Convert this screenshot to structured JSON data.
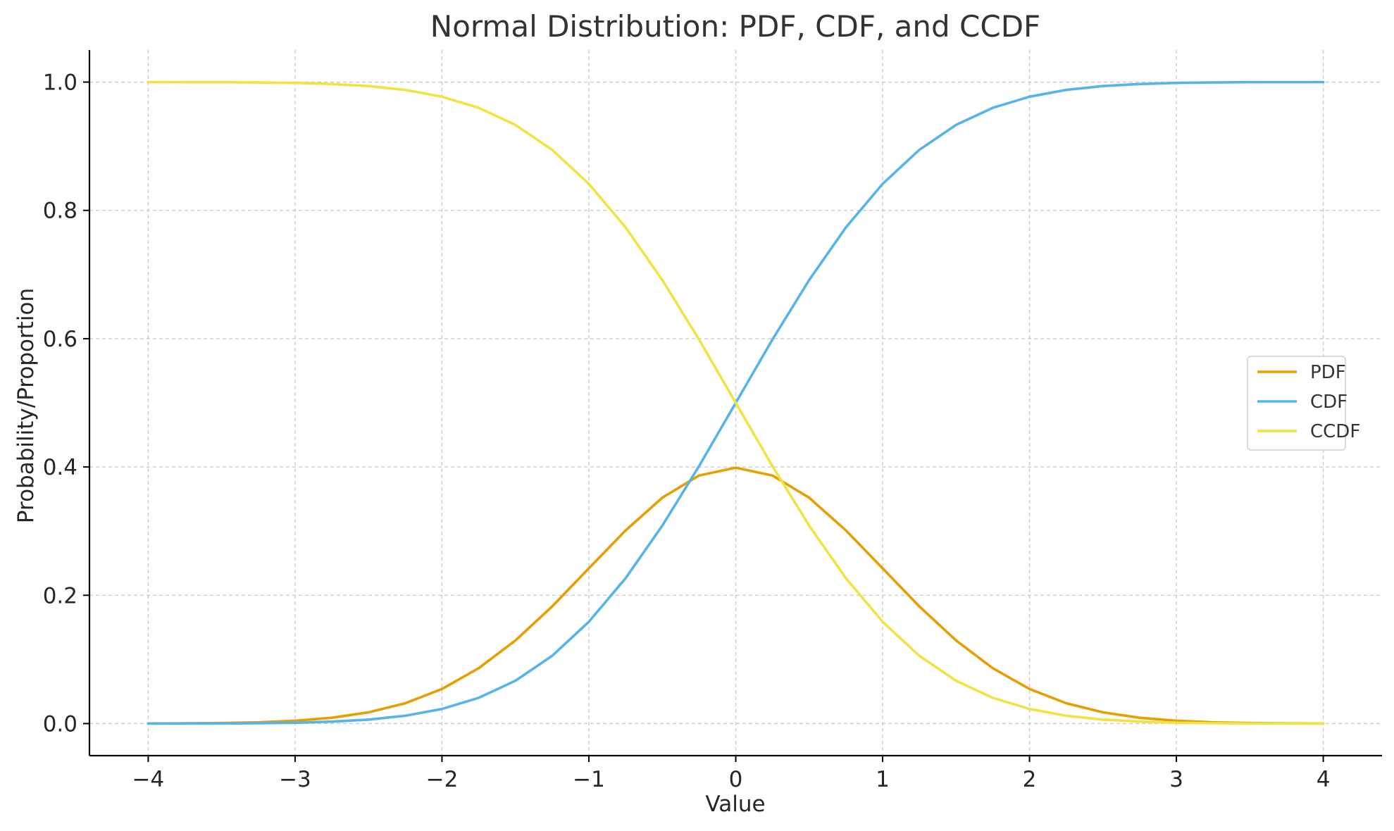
{
  "chart_data": {
    "type": "line",
    "title": "Normal Distribution: PDF, CDF, and CCDF",
    "xlabel": "Value",
    "ylabel": "Probability/Proportion",
    "xlim": [
      -4.4,
      4.4
    ],
    "ylim": [
      -0.05,
      1.05
    ],
    "xticks": [
      -4,
      -3,
      -2,
      -1,
      0,
      1,
      2,
      3,
      4
    ],
    "xtick_labels": [
      "−4",
      "−3",
      "−2",
      "−1",
      "0",
      "1",
      "2",
      "3",
      "4"
    ],
    "yticks": [
      0.0,
      0.2,
      0.4,
      0.6,
      0.8,
      1.0
    ],
    "ytick_labels": [
      "0.0",
      "0.2",
      "0.4",
      "0.6",
      "0.8",
      "1.0"
    ],
    "grid": true,
    "legend_position": "center-right",
    "x": [
      -4.0,
      -3.75,
      -3.5,
      -3.25,
      -3.0,
      -2.75,
      -2.5,
      -2.25,
      -2.0,
      -1.75,
      -1.5,
      -1.25,
      -1.0,
      -0.75,
      -0.5,
      -0.25,
      0.0,
      0.25,
      0.5,
      0.75,
      1.0,
      1.25,
      1.5,
      1.75,
      2.0,
      2.25,
      2.5,
      2.75,
      3.0,
      3.25,
      3.5,
      3.75,
      4.0
    ],
    "series": [
      {
        "name": "PDF",
        "color": "#E69F00",
        "values": [
          0.0001,
          0.0004,
          0.0009,
          0.002,
          0.0044,
          0.0091,
          0.0175,
          0.0317,
          0.054,
          0.0863,
          0.1295,
          0.1826,
          0.242,
          0.3011,
          0.3521,
          0.3867,
          0.3989,
          0.3867,
          0.3521,
          0.3011,
          0.242,
          0.1826,
          0.1295,
          0.0863,
          0.054,
          0.0317,
          0.0175,
          0.0091,
          0.0044,
          0.002,
          0.0009,
          0.0004,
          0.0001
        ]
      },
      {
        "name": "CDF",
        "color": "#56B4E9",
        "values": [
          0.0,
          0.0001,
          0.0002,
          0.0006,
          0.0013,
          0.003,
          0.0062,
          0.0122,
          0.0228,
          0.0401,
          0.0668,
          0.1056,
          0.1587,
          0.2266,
          0.3085,
          0.4013,
          0.5,
          0.5987,
          0.6915,
          0.7734,
          0.8413,
          0.8944,
          0.9332,
          0.9599,
          0.9772,
          0.9878,
          0.9938,
          0.997,
          0.9987,
          0.9994,
          0.9998,
          0.9999,
          1.0
        ]
      },
      {
        "name": "CCDF",
        "color": "#F0E442",
        "values": [
          1.0,
          0.9999,
          0.9998,
          0.9994,
          0.9987,
          0.997,
          0.9938,
          0.9878,
          0.9772,
          0.9599,
          0.9332,
          0.8944,
          0.8413,
          0.7734,
          0.6915,
          0.5987,
          0.5,
          0.4013,
          0.3085,
          0.2266,
          0.1587,
          0.1056,
          0.0668,
          0.0401,
          0.0228,
          0.0122,
          0.0062,
          0.003,
          0.0013,
          0.0006,
          0.0002,
          0.0001,
          0.0
        ]
      }
    ]
  }
}
